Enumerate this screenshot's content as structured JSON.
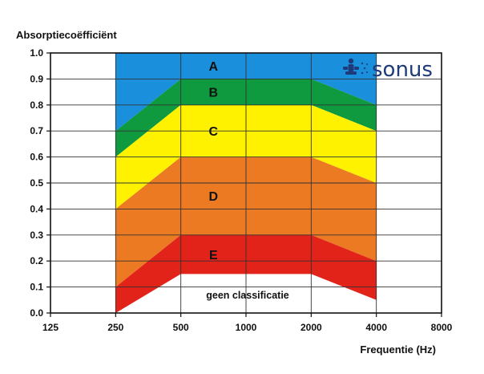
{
  "chart_data": {
    "type": "area",
    "ylabel": "Absorptiecoëfficiënt",
    "xlabel": "Frequentie (Hz)",
    "x_ticks": [
      "125",
      "250",
      "500",
      "1000",
      "2000",
      "4000",
      "8000"
    ],
    "y_ticks": [
      "0.0",
      "0.1",
      "0.2",
      "0.3",
      "0.4",
      "0.5",
      "0.6",
      "0.7",
      "0.8",
      "0.9",
      "1.0"
    ],
    "ylim": [
      0,
      1
    ],
    "x_scale": "log2",
    "grid": true,
    "band_x": [
      "250",
      "500",
      "1000",
      "2000",
      "4000"
    ],
    "bands": [
      {
        "name": "A",
        "color": "#1a8fdc",
        "lower": [
          0.7,
          0.9,
          0.9,
          0.9,
          0.8
        ],
        "upper": [
          1.0,
          1.0,
          1.0,
          1.0,
          1.0
        ]
      },
      {
        "name": "B",
        "color": "#0f9a40",
        "lower": [
          0.6,
          0.8,
          0.8,
          0.8,
          0.7
        ],
        "upper": [
          0.7,
          0.9,
          0.9,
          0.9,
          0.8
        ]
      },
      {
        "name": "C",
        "color": "#fff200",
        "lower": [
          0.4,
          0.6,
          0.6,
          0.6,
          0.5
        ],
        "upper": [
          0.6,
          0.8,
          0.8,
          0.8,
          0.7
        ]
      },
      {
        "name": "D",
        "color": "#ec7a23",
        "lower": [
          0.1,
          0.3,
          0.3,
          0.3,
          0.2
        ],
        "upper": [
          0.4,
          0.6,
          0.6,
          0.6,
          0.5
        ]
      },
      {
        "name": "E",
        "color": "#e2231a",
        "lower": [
          0.0,
          0.15,
          0.15,
          0.15,
          0.05
        ],
        "upper": [
          0.1,
          0.3,
          0.3,
          0.3,
          0.2
        ]
      }
    ],
    "annotations": [
      "geen classificatie"
    ]
  },
  "logo": {
    "text": "sonus",
    "color": "#1f3a7a"
  }
}
